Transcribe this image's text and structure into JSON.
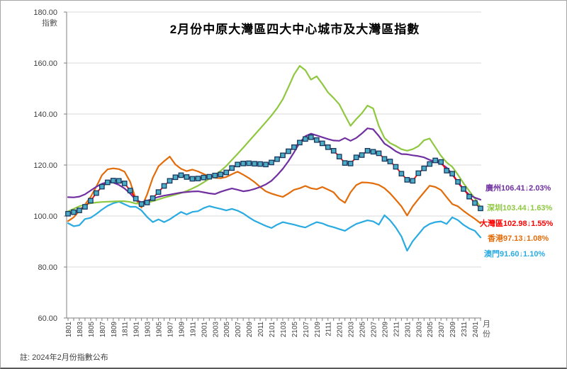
{
  "chart": {
    "title": "2月份中原大灣區四大中心城市及大灣區指數",
    "y_axis": {
      "title": "指數",
      "tick_labels": [
        "180.00",
        "160.00",
        "140.00",
        "120.00",
        "100.00",
        "80.00",
        "60.00"
      ]
    },
    "x_axis": {
      "title": "月份"
    },
    "note": "註: 2024年2月份指數公布"
  },
  "chart_data": {
    "type": "line",
    "title": "2月份中原大灣區四大中心城市及大灣區指數",
    "xlabel": "月份",
    "ylabel": "指數",
    "ylim": [
      60,
      180
    ],
    "x_tick_step": 2,
    "grid": true,
    "legend_position": "right",
    "x": [
      "1801",
      "1802",
      "1803",
      "1804",
      "1805",
      "1806",
      "1807",
      "1808",
      "1809",
      "1810",
      "1811",
      "1812",
      "1901",
      "1902",
      "1903",
      "1904",
      "1905",
      "1906",
      "1907",
      "1908",
      "1909",
      "1910",
      "1911",
      "1912",
      "2001",
      "2002",
      "2003",
      "2004",
      "2005",
      "2006",
      "2007",
      "2008",
      "2009",
      "2010",
      "2011",
      "2012",
      "2101",
      "2102",
      "2103",
      "2104",
      "2105",
      "2106",
      "2107",
      "2108",
      "2109",
      "2110",
      "2111",
      "2112",
      "2201",
      "2202",
      "2203",
      "2204",
      "2205",
      "2206",
      "2207",
      "2208",
      "2209",
      "2210",
      "2211",
      "2212",
      "2301",
      "2302",
      "2303",
      "2304",
      "2305",
      "2306",
      "2307",
      "2308",
      "2309",
      "2310",
      "2311",
      "2312",
      "2401",
      "2402"
    ],
    "series": [
      {
        "id": "guangzhou",
        "name": "廣州",
        "color": "#7030a0",
        "marker": false,
        "legend_value": "106.41",
        "legend_change": "↓2.03%",
        "values": [
          107.4,
          107.3,
          107.6,
          108.5,
          110.0,
          111.5,
          112.6,
          113.3,
          113.1,
          112.2,
          110.8,
          108.8,
          106.3,
          105.4,
          106.0,
          106.8,
          107.5,
          108.0,
          108.4,
          108.8,
          109.2,
          109.4,
          109.6,
          109.7,
          109.3,
          108.9,
          108.6,
          109.5,
          110.2,
          110.8,
          110.3,
          109.7,
          110.0,
          110.6,
          111.4,
          112.4,
          113.8,
          116.0,
          118.5,
          121.5,
          125.0,
          128.8,
          131.3,
          132.3,
          131.6,
          130.9,
          130.2,
          129.6,
          129.5,
          130.6,
          129.5,
          130.6,
          132.4,
          134.4,
          134.0,
          131.4,
          128.4,
          127.0,
          125.4,
          124.3,
          124.2,
          123.8,
          123.5,
          123.0,
          122.0,
          121.4,
          120.5,
          119.0,
          116.4,
          113.1,
          110.4,
          108.4,
          107.2,
          106.41
        ]
      },
      {
        "id": "shenzhen",
        "name": "深圳",
        "color": "#8fc840",
        "marker": false,
        "legend_value": "103.44",
        "legend_change": "↓1.63%",
        "values": [
          101.8,
          102.8,
          103.8,
          104.5,
          105.0,
          105.3,
          105.5,
          105.6,
          105.7,
          105.8,
          105.8,
          105.5,
          104.9,
          105.0,
          105.3,
          105.8,
          106.5,
          107.2,
          107.8,
          108.4,
          109.0,
          109.8,
          110.8,
          111.9,
          113.2,
          114.6,
          116.1,
          117.7,
          119.6,
          122.0,
          124.4,
          126.8,
          129.3,
          131.8,
          134.3,
          136.8,
          139.4,
          142.3,
          145.8,
          150.5,
          155.5,
          158.9,
          157.2,
          153.5,
          154.8,
          151.8,
          148.5,
          146.3,
          143.8,
          139.5,
          135.4,
          138.0,
          140.3,
          143.3,
          142.2,
          135.3,
          130.6,
          128.6,
          127.5,
          126.2,
          125.6,
          126.2,
          127.4,
          129.7,
          130.4,
          127.0,
          123.6,
          121.0,
          119.3,
          116.2,
          112.8,
          109.8,
          106.9,
          103.44
        ]
      },
      {
        "id": "greater-bay-area",
        "name": "大灣區",
        "color": "#ff0000",
        "marker": true,
        "marker_fill": "#4bacc6",
        "marker_stroke": "#17375e",
        "legend_value": "102.98",
        "legend_change": "↓1.55%",
        "values": [
          100.9,
          101.5,
          102.2,
          103.6,
          106.0,
          109.0,
          111.5,
          113.2,
          113.9,
          113.8,
          112.8,
          110.0,
          106.8,
          104.7,
          105.3,
          107.0,
          109.4,
          111.8,
          113.8,
          115.2,
          116.0,
          115.3,
          114.6,
          114.7,
          115.1,
          115.4,
          115.9,
          116.3,
          117.1,
          118.8,
          120.2,
          120.6,
          120.7,
          120.5,
          120.4,
          120.2,
          121.0,
          122.3,
          123.8,
          125.4,
          127.0,
          128.8,
          130.2,
          130.9,
          129.8,
          128.5,
          127.0,
          125.6,
          123.3,
          120.8,
          120.6,
          123.0,
          123.9,
          125.6,
          125.2,
          124.6,
          122.4,
          121.4,
          119.3,
          116.6,
          114.2,
          113.8,
          116.8,
          118.7,
          120.4,
          121.8,
          121.2,
          117.8,
          116.6,
          113.4,
          110.6,
          107.6,
          105.1,
          102.98
        ]
      },
      {
        "id": "hongkong",
        "name": "香港",
        "color": "#e36c0a",
        "marker": false,
        "legend_value": "97.13",
        "legend_change": "↓1.08%",
        "values": [
          98.0,
          99.5,
          102.0,
          104.5,
          107.5,
          111.5,
          116.0,
          118.3,
          118.7,
          118.4,
          117.4,
          113.4,
          106.5,
          103.3,
          108.5,
          115.0,
          119.5,
          121.5,
          123.3,
          120.2,
          118.5,
          117.6,
          118.2,
          117.5,
          116.5,
          115.5,
          115.0,
          114.8,
          115.3,
          116.4,
          117.4,
          116.2,
          114.9,
          113.3,
          111.4,
          109.7,
          108.8,
          108.1,
          107.5,
          108.8,
          110.3,
          110.9,
          111.8,
          110.9,
          110.5,
          111.4,
          110.4,
          109.3,
          106.7,
          105.2,
          109.3,
          112.1,
          113.2,
          113.1,
          112.8,
          112.2,
          110.9,
          108.9,
          106.4,
          103.8,
          100.2,
          103.8,
          106.6,
          109.3,
          111.9,
          111.4,
          110.2,
          107.4,
          104.7,
          103.8,
          102.0,
          100.4,
          98.9,
          97.13
        ]
      },
      {
        "id": "macau",
        "name": "澳門",
        "color": "#29abe2",
        "marker": false,
        "legend_value": "91.60",
        "legend_change": "↓1.10%",
        "values": [
          97.2,
          96.0,
          96.4,
          98.8,
          99.3,
          100.8,
          102.5,
          104.0,
          105.0,
          105.6,
          104.6,
          103.6,
          103.6,
          102.2,
          99.6,
          97.6,
          98.7,
          97.6,
          98.7,
          100.2,
          101.6,
          100.6,
          101.6,
          101.9,
          103.1,
          103.9,
          103.3,
          102.8,
          102.2,
          102.8,
          102.1,
          101.0,
          99.5,
          98.1,
          97.1,
          96.1,
          95.3,
          96.6,
          97.6,
          97.1,
          96.6,
          96.0,
          95.5,
          96.6,
          97.6,
          97.1,
          96.2,
          95.6,
          94.9,
          94.2,
          95.6,
          96.9,
          97.6,
          98.3,
          97.9,
          96.6,
          100.3,
          98.3,
          95.5,
          92.0,
          86.4,
          90.1,
          92.8,
          95.5,
          96.9,
          97.6,
          97.9,
          96.9,
          99.5,
          98.4,
          96.5,
          95.1,
          94.2,
          91.6
        ]
      }
    ]
  }
}
